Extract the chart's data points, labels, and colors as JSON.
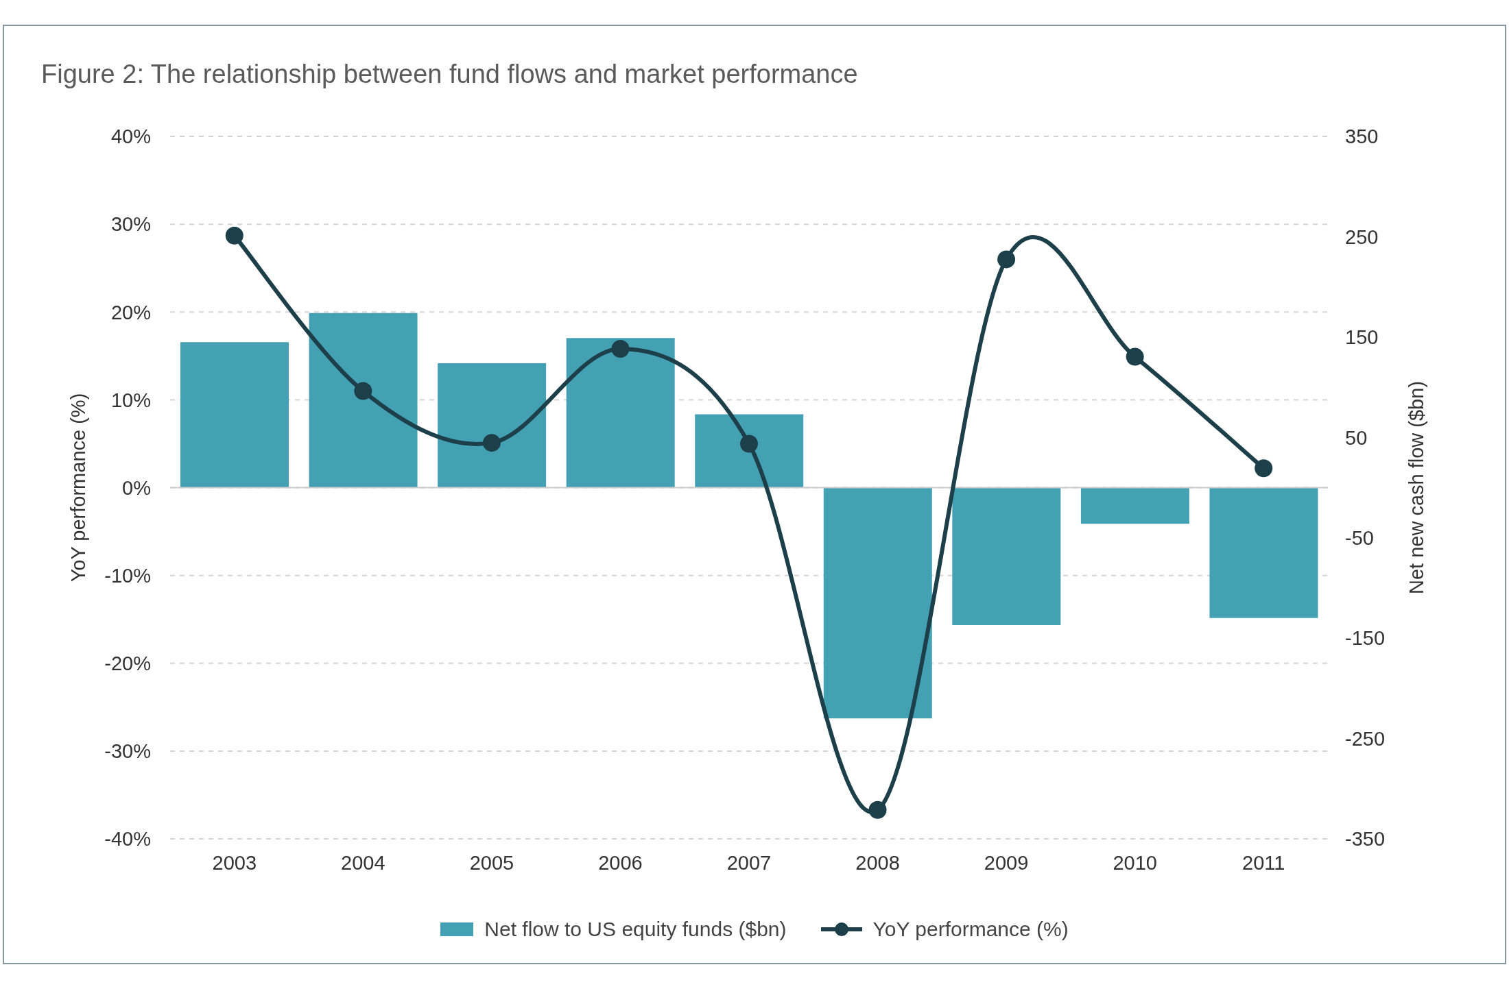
{
  "chart_data": {
    "type": "bar",
    "title": "Figure 2: The relationship between fund flows and market performance",
    "ylabel": "YoY performance (%)",
    "y2label": "Net new cash flow ($bn)",
    "categories": [
      "2003",
      "2004",
      "2005",
      "2006",
      "2007",
      "2008",
      "2009",
      "2010",
      "2011"
    ],
    "series": [
      {
        "name": "Net flow to US equity funds ($bn)",
        "axis": "y2",
        "color": "#44a1b4",
        "values": [
          145,
          174,
          124,
          149,
          73,
          -230,
          -137,
          -36,
          -130
        ]
      },
      {
        "name": "YoY performance (%)",
        "type": "line",
        "color": "#1c3f4a",
        "values": [
          28.7,
          11.0,
          5.1,
          15.8,
          5.0,
          -36.7,
          26.0,
          14.9,
          2.2
        ]
      }
    ],
    "ylim": [
      -40,
      40
    ],
    "yticks": [
      {
        "value": -40,
        "label": "-40%"
      },
      {
        "value": -30,
        "label": "-30%"
      },
      {
        "value": -20,
        "label": "-20%"
      },
      {
        "value": -10,
        "label": "-10%"
      },
      {
        "value": 0,
        "label": "0%"
      },
      {
        "value": 10,
        "label": "10%"
      },
      {
        "value": 20,
        "label": "20%"
      },
      {
        "value": 30,
        "label": "30%"
      },
      {
        "value": 40,
        "label": "40%"
      }
    ],
    "y2lim": [
      -350,
      350
    ],
    "y2ticks": [
      -350,
      -250,
      -150,
      -50,
      50,
      150,
      250,
      350
    ],
    "ref_lines": [
      {
        "axis": "y",
        "value": 0,
        "color": "#cccccc",
        "line_style": "solid"
      }
    ],
    "grid": "y",
    "legend": "bottom",
    "marker": "circle",
    "line_style": "solid"
  }
}
